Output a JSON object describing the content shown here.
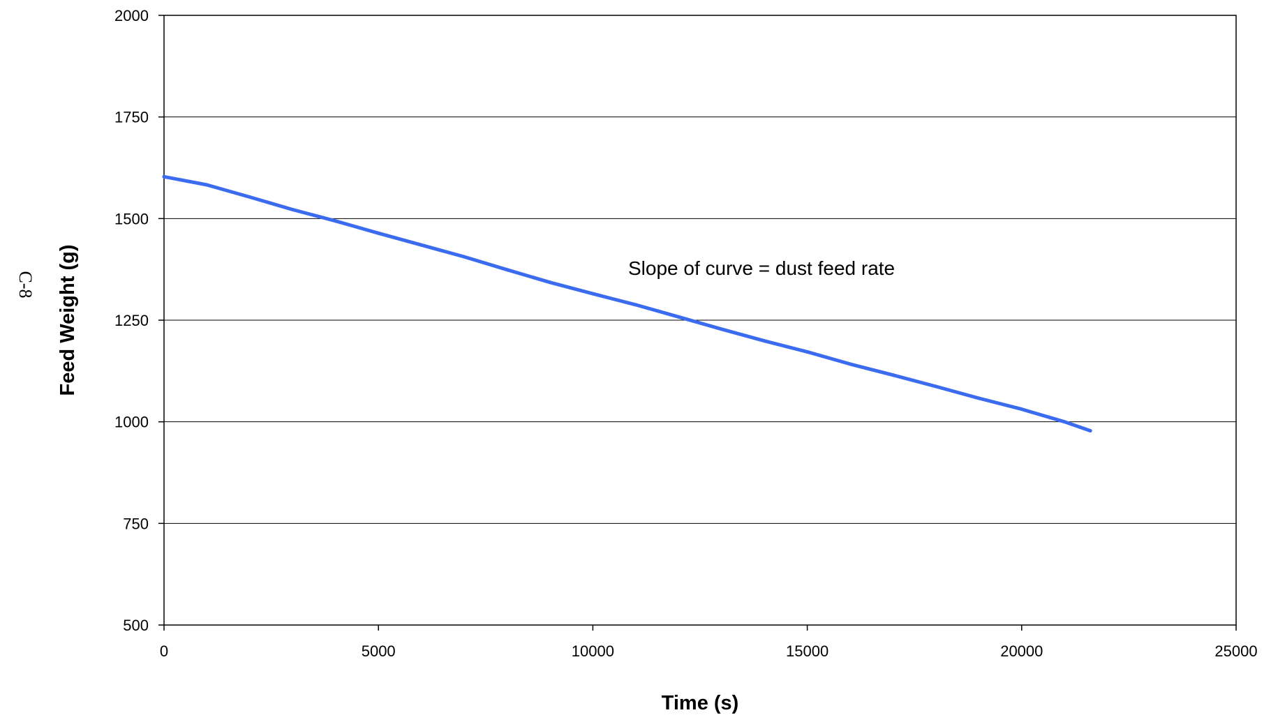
{
  "page": {
    "side_label": "C-8"
  },
  "chart_data": {
    "type": "line",
    "title": "",
    "xlabel": "Time (s)",
    "ylabel": "Feed Weight (g)",
    "xlim": [
      0,
      25000
    ],
    "ylim": [
      500,
      2000
    ],
    "x_ticks": [
      0,
      5000,
      10000,
      15000,
      20000,
      25000
    ],
    "y_ticks": [
      500,
      750,
      1000,
      1250,
      1500,
      1750,
      2000
    ],
    "x_tick_labels": [
      "0",
      "5000",
      "10000",
      "15000",
      "20000",
      "25000"
    ],
    "y_tick_labels": [
      "500",
      "750",
      "1000",
      "1250",
      "1500",
      "1750",
      "2000"
    ],
    "grid": {
      "horizontal": true,
      "vertical": false
    },
    "legend": "none",
    "annotation": "Slope of curve = dust feed rate",
    "series": [
      {
        "color": "#3b6cf0",
        "x": [
          0,
          1000,
          2000,
          3000,
          4000,
          5000,
          6000,
          7000,
          8000,
          9000,
          10000,
          11000,
          12000,
          13000,
          14000,
          15000,
          16000,
          17000,
          18000,
          19000,
          20000,
          21000,
          21600
        ],
        "y": [
          1603,
          1583,
          1553,
          1522,
          1494,
          1464,
          1435,
          1406,
          1374,
          1343,
          1315,
          1288,
          1258,
          1228,
          1199,
          1172,
          1142,
          1115,
          1087,
          1058,
          1031,
          1000,
          978
        ]
      }
    ]
  }
}
